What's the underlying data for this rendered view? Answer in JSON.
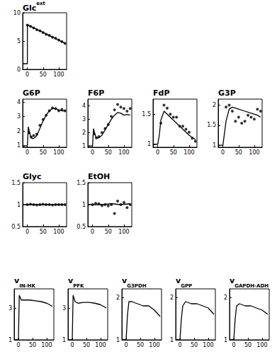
{
  "chart_data": [
    {
      "type": "line",
      "title": "Glc",
      "superscript": "ext",
      "xlim": [
        -15,
        125
      ],
      "xticks": [
        0,
        50,
        100
      ],
      "ylim": [
        0,
        10
      ],
      "yticks": [
        0,
        5,
        10
      ],
      "series": [
        {
          "type": "scatter",
          "marker": "circle",
          "color": "#000000",
          "x": [
            0,
            10,
            20,
            30,
            40,
            50,
            60,
            70,
            80,
            90,
            100,
            110,
            120
          ],
          "values": [
            7.8,
            7.6,
            7.3,
            7.0,
            6.8,
            6.5,
            6.2,
            6.0,
            5.7,
            5.5,
            5.2,
            4.9,
            4.6
          ]
        },
        {
          "type": "line",
          "line_style": "solid",
          "color": "#000000",
          "x": [
            -15,
            0,
            0,
            120
          ],
          "values": [
            1,
            1,
            7.9,
            4.6
          ]
        }
      ]
    },
    {
      "type": "line",
      "title": "G6P",
      "xlim": [
        -15,
        125
      ],
      "xticks": [
        0,
        50,
        100
      ],
      "ylim": [
        0.9,
        4.2
      ],
      "yticks": [
        1,
        2,
        3,
        4
      ],
      "series": [
        {
          "type": "scatter",
          "marker": "circle",
          "color": "#000000",
          "x": [
            5,
            12,
            20,
            30,
            40,
            50,
            60,
            70,
            80,
            90,
            100,
            110,
            120
          ],
          "values": [
            1.9,
            1.6,
            1.7,
            1.8,
            2.4,
            2.8,
            3.1,
            3.4,
            3.6,
            3.55,
            3.4,
            3.5,
            3.4
          ]
        },
        {
          "type": "line",
          "line_style": "solid",
          "color": "#000000",
          "x": [
            -15,
            0,
            3,
            6,
            10,
            15,
            20,
            30,
            40,
            50,
            60,
            70,
            80,
            90,
            100,
            110,
            120
          ],
          "values": [
            1,
            1,
            2.3,
            2.0,
            1.7,
            1.5,
            1.5,
            1.7,
            2.2,
            2.7,
            3.1,
            3.4,
            3.55,
            3.55,
            3.45,
            3.4,
            3.4
          ]
        }
      ]
    },
    {
      "type": "line",
      "title": "F6P",
      "xlim": [
        -15,
        125
      ],
      "xticks": [
        0,
        50,
        100
      ],
      "ylim": [
        0.9,
        4.5
      ],
      "yticks": [
        1,
        2,
        3,
        4
      ],
      "series": [
        {
          "type": "scatter",
          "marker": "circle",
          "color": "#000000",
          "x": [
            5,
            12,
            20,
            30,
            40,
            50,
            60,
            70,
            80,
            90,
            100,
            110,
            120
          ],
          "values": [
            1.9,
            1.6,
            1.7,
            2.0,
            2.3,
            2.6,
            3.2,
            3.7,
            4.1,
            3.9,
            3.8,
            3.6,
            3.8
          ]
        },
        {
          "type": "line",
          "line_style": "solid",
          "color": "#000000",
          "x": [
            -15,
            0,
            3,
            6,
            10,
            15,
            20,
            30,
            40,
            50,
            60,
            70,
            80,
            90,
            100,
            110,
            120
          ],
          "values": [
            1,
            1,
            2.3,
            2.0,
            1.7,
            1.6,
            1.6,
            1.8,
            2.2,
            2.6,
            3.0,
            3.3,
            3.5,
            3.45,
            3.3,
            3.35,
            3.3
          ]
        }
      ]
    },
    {
      "type": "line",
      "title": "FdP",
      "xlim": [
        -15,
        125
      ],
      "xticks": [
        0,
        50,
        100
      ],
      "ylim": [
        0.95,
        1.75
      ],
      "yticks": [
        1,
        1.5
      ],
      "series": [
        {
          "type": "scatter",
          "marker": "circle",
          "color": "#000000",
          "x": [
            10,
            20,
            30,
            40,
            50,
            60,
            70,
            80,
            90,
            100,
            110,
            120
          ],
          "values": [
            1.35,
            1.65,
            1.6,
            1.5,
            1.45,
            1.45,
            1.3,
            1.3,
            1.25,
            1.2,
            1.1,
            1.05
          ]
        },
        {
          "type": "line",
          "line_style": "solid",
          "color": "#000000",
          "x": [
            -15,
            0,
            5,
            10,
            20,
            30,
            40,
            60,
            80,
            100,
            120
          ],
          "values": [
            1,
            1,
            1.15,
            1.4,
            1.55,
            1.5,
            1.45,
            1.35,
            1.25,
            1.15,
            1.08
          ]
        }
      ]
    },
    {
      "type": "line",
      "title": "G3P",
      "xlim": [
        -15,
        125
      ],
      "xticks": [
        0,
        50,
        100
      ],
      "ylim": [
        0.95,
        2.15
      ],
      "yticks": [
        1,
        1.5,
        2
      ],
      "series": [
        {
          "type": "scatter",
          "marker": "circle",
          "color": "#000000",
          "x": [
            10,
            20,
            30,
            40,
            50,
            60,
            70,
            80,
            90,
            100,
            110,
            120
          ],
          "values": [
            1.95,
            2.0,
            1.85,
            1.6,
            1.7,
            1.55,
            1.6,
            1.75,
            1.7,
            1.65,
            1.9,
            1.85
          ]
        },
        {
          "type": "line",
          "line_style": "solid",
          "color": "#000000",
          "x": [
            -15,
            0,
            5,
            10,
            20,
            30,
            50,
            70,
            90,
            110,
            120
          ],
          "values": [
            1,
            1,
            1.3,
            1.6,
            1.9,
            1.95,
            1.9,
            1.85,
            1.8,
            1.75,
            1.7
          ]
        }
      ]
    },
    {
      "type": "line",
      "title": "Glyc",
      "xlim": [
        -15,
        125
      ],
      "xticks": [
        0,
        50,
        100
      ],
      "ylim": [
        0.5,
        1.5
      ],
      "yticks": [
        0.5,
        1,
        1.5
      ],
      "series": [
        {
          "type": "scatter",
          "marker": "circle",
          "color": "#000000",
          "x": [
            0,
            10,
            20,
            30,
            40,
            50,
            60,
            70,
            80,
            90,
            100,
            110,
            120
          ],
          "values": [
            1.0,
            1.01,
            1.0,
            0.99,
            1.0,
            1.01,
            1.0,
            1.0,
            0.99,
            1.0,
            1.0,
            1.0,
            1.0
          ]
        },
        {
          "type": "line",
          "line_style": "solid",
          "color": "#000000",
          "x": [
            -15,
            120
          ],
          "values": [
            1,
            1
          ]
        }
      ]
    },
    {
      "type": "line",
      "title": "EtOH",
      "xlim": [
        -15,
        125
      ],
      "xticks": [
        0,
        50,
        100
      ],
      "ylim": [
        0.5,
        1.5
      ],
      "yticks": [
        0.5,
        1,
        1.5
      ],
      "series": [
        {
          "type": "scatter",
          "marker": "circle",
          "color": "#000000",
          "x": [
            0,
            10,
            20,
            30,
            40,
            50,
            60,
            70,
            80,
            90,
            100,
            110,
            120
          ],
          "values": [
            1.0,
            1.03,
            1.02,
            0.98,
            1.0,
            0.97,
            1.0,
            0.8,
            1.08,
            1.0,
            1.05,
            0.93,
            1.0
          ]
        },
        {
          "type": "line",
          "line_style": "solid",
          "color": "#000000",
          "x": [
            -15,
            0,
            30,
            60,
            90,
            120
          ],
          "values": [
            1,
            1,
            1.0,
            1.02,
            1.0,
            1.02
          ]
        }
      ]
    },
    {
      "type": "line",
      "title": "v",
      "subscript": "IN-HK",
      "xlim": [
        -15,
        125
      ],
      "xticks": [
        0,
        50,
        100
      ],
      "ylim": [
        1,
        4.2
      ],
      "yticks": [
        1,
        3
      ],
      "series": [
        {
          "type": "line",
          "line_style": "solid",
          "color": "#000000",
          "x": [
            -15,
            0,
            3,
            10,
            20,
            40,
            60,
            80,
            100,
            120
          ],
          "values": [
            1,
            1,
            3.8,
            3.5,
            3.5,
            3.5,
            3.45,
            3.4,
            3.3,
            3.1
          ]
        }
      ]
    },
    {
      "type": "line",
      "title": "v",
      "subscript": "PFK",
      "xlim": [
        -15,
        125
      ],
      "xticks": [
        0,
        50,
        100
      ],
      "ylim": [
        1,
        4.2
      ],
      "yticks": [
        1,
        3
      ],
      "series": [
        {
          "type": "line",
          "line_style": "solid",
          "color": "#000000",
          "x": [
            -15,
            0,
            3,
            10,
            20,
            40,
            60,
            80,
            100,
            120
          ],
          "values": [
            1,
            1,
            3.8,
            3.4,
            3.3,
            3.35,
            3.35,
            3.3,
            3.2,
            3.0
          ]
        }
      ]
    },
    {
      "type": "line",
      "title": "v",
      "subscript": "G3PDH",
      "xlim": [
        -15,
        125
      ],
      "xticks": [
        0,
        50,
        100
      ],
      "ylim": [
        1,
        2.2
      ],
      "yticks": [
        1,
        2
      ],
      "series": [
        {
          "type": "line",
          "line_style": "solid",
          "color": "#000000",
          "x": [
            -15,
            0,
            5,
            10,
            20,
            40,
            60,
            80,
            100,
            120
          ],
          "values": [
            1,
            1,
            1.6,
            1.9,
            1.9,
            1.85,
            1.8,
            1.8,
            1.7,
            1.55
          ]
        }
      ]
    },
    {
      "type": "line",
      "title": "v",
      "subscript": "GPP",
      "xlim": [
        -15,
        125
      ],
      "xticks": [
        0,
        50,
        100
      ],
      "ylim": [
        1,
        2.2
      ],
      "yticks": [
        1,
        2
      ],
      "series": [
        {
          "type": "line",
          "line_style": "solid",
          "color": "#000000",
          "x": [
            -15,
            0,
            5,
            10,
            20,
            40,
            60,
            80,
            100,
            120
          ],
          "values": [
            1,
            1,
            1.5,
            1.8,
            1.9,
            1.85,
            1.85,
            1.8,
            1.75,
            1.6
          ]
        }
      ]
    },
    {
      "type": "line",
      "title": "v",
      "subscript": "GAPDH-ADH",
      "xlim": [
        -15,
        125
      ],
      "xticks": [
        0,
        50,
        100
      ],
      "ylim": [
        1,
        2.2
      ],
      "yticks": [
        1,
        2
      ],
      "series": [
        {
          "type": "line",
          "line_style": "solid",
          "color": "#000000",
          "x": [
            -15,
            0,
            5,
            10,
            20,
            40,
            60,
            80,
            100,
            120
          ],
          "values": [
            1,
            1,
            1.5,
            1.8,
            1.85,
            1.8,
            1.8,
            1.75,
            1.7,
            1.6
          ]
        }
      ]
    }
  ]
}
